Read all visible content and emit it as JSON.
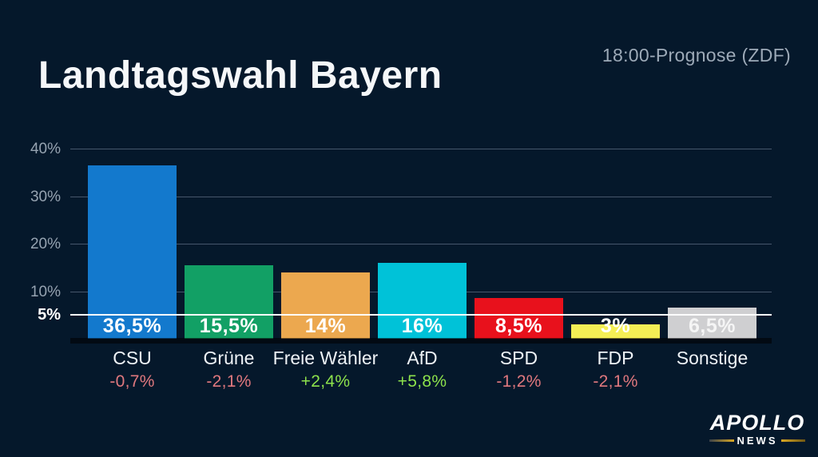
{
  "header": {
    "title": "Landtagswahl Bayern",
    "subtitle": "18:00-Prognose (ZDF)"
  },
  "colors": {
    "background": "#05182b",
    "gridline": "#46566b",
    "highlight_line": "#ffffff",
    "tick_label": "#96a3b1",
    "tick_label_highlight": "#ffffff",
    "change_up": "#8de24c",
    "change_down": "#e0787e",
    "brand_gold": "#d9a823"
  },
  "chart_data": {
    "type": "bar",
    "title": "Landtagswahl Bayern",
    "subtitle": "18:00-Prognose (ZDF)",
    "xlabel": "",
    "ylabel": "",
    "ylim": [
      0,
      42
    ],
    "grid": true,
    "categories": [
      "CSU",
      "Grüne",
      "Freie Wähler",
      "AfD",
      "SPD",
      "FDP",
      "Sonstige"
    ],
    "values": [
      36.5,
      15.5,
      14,
      16,
      8.5,
      3,
      6.5
    ],
    "value_labels": [
      "36,5%",
      "15,5%",
      "14%",
      "16%",
      "8,5%",
      "3%",
      "6,5%"
    ],
    "value_label_colors": [
      "#ffffff",
      "#ffffff",
      "#ffffff",
      "#ffffff",
      "#ffffff",
      "#ffffff",
      "rgba(255,255,255,0.78)"
    ],
    "bar_colors": [
      "#1379cd",
      "#12a065",
      "#eca84f",
      "#00c2d8",
      "#e8111c",
      "#f4ee55",
      "#cfcfd1"
    ],
    "changes": [
      "-0,7%",
      "-2,1%",
      "+2,4%",
      "+5,8%",
      "-1,2%",
      "-2,1%",
      ""
    ],
    "change_directions": [
      "down",
      "down",
      "up",
      "up",
      "down",
      "down",
      "none"
    ],
    "yticks": [
      {
        "label": "40%",
        "value": 40
      },
      {
        "label": "30%",
        "value": 30
      },
      {
        "label": "20%",
        "value": 20
      },
      {
        "label": "10%",
        "value": 10
      }
    ],
    "highlight_tick": {
      "label": "5%",
      "value": 5
    }
  },
  "branding": {
    "name": "APOLLO",
    "sub": "NEWS"
  }
}
